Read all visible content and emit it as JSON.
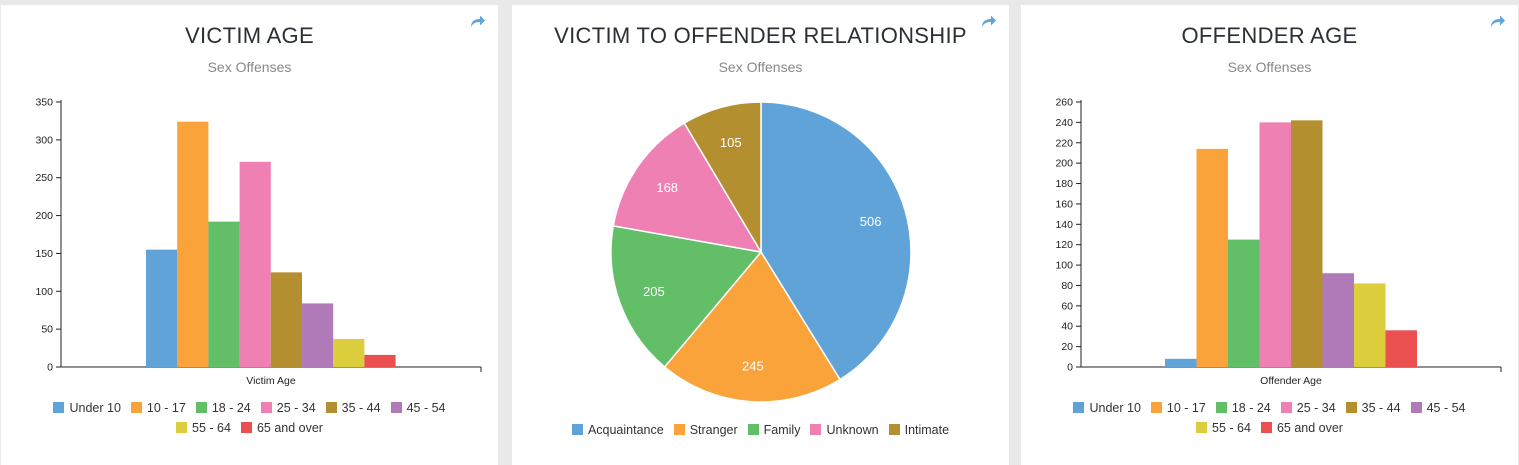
{
  "colors": {
    "under10": "#5fa3d9",
    "age10_17": "#f9a33a",
    "age18_24": "#63bf67",
    "age25_34": "#ef80b3",
    "age35_44": "#b38f2f",
    "age45_54": "#b07ab8",
    "age55_64": "#dccd3d",
    "age65": "#e9504f"
  },
  "chart_data": [
    {
      "type": "bar",
      "title": "VICTIM AGE",
      "subtitle": "Sex Offenses",
      "xlabel": "Victim Age",
      "ylim": [
        0,
        350
      ],
      "yticks": [
        0,
        50,
        100,
        150,
        200,
        250,
        300,
        350
      ],
      "categories": [
        "Under 10",
        "10 - 17",
        "18 - 24",
        "25 - 34",
        "35 - 44",
        "45 - 54",
        "55 - 64",
        "65 and over"
      ],
      "values": [
        155,
        324,
        192,
        271,
        125,
        84,
        37,
        16
      ],
      "legend": "bottom"
    },
    {
      "type": "pie",
      "title": "VICTIM TO OFFENDER RELATIONSHIP",
      "subtitle": "Sex Offenses",
      "categories": [
        "Acquaintance",
        "Stranger",
        "Family",
        "Unknown",
        "Intimate"
      ],
      "values": [
        506,
        245,
        205,
        168,
        105
      ],
      "legend": "bottom"
    },
    {
      "type": "bar",
      "title": "OFFENDER AGE",
      "subtitle": "Sex Offenses",
      "xlabel": "Offender Age",
      "ylim": [
        0,
        260
      ],
      "yticks": [
        0,
        20,
        40,
        60,
        80,
        100,
        120,
        140,
        160,
        180,
        200,
        220,
        240,
        260
      ],
      "categories": [
        "Under 10",
        "10 - 17",
        "18 - 24",
        "25 - 34",
        "35 - 44",
        "45 - 54",
        "55 - 64",
        "65 and over"
      ],
      "values": [
        8,
        214,
        125,
        240,
        242,
        92,
        82,
        36
      ],
      "legend": "bottom"
    }
  ],
  "icons": {
    "share": "share-arrow-icon"
  }
}
